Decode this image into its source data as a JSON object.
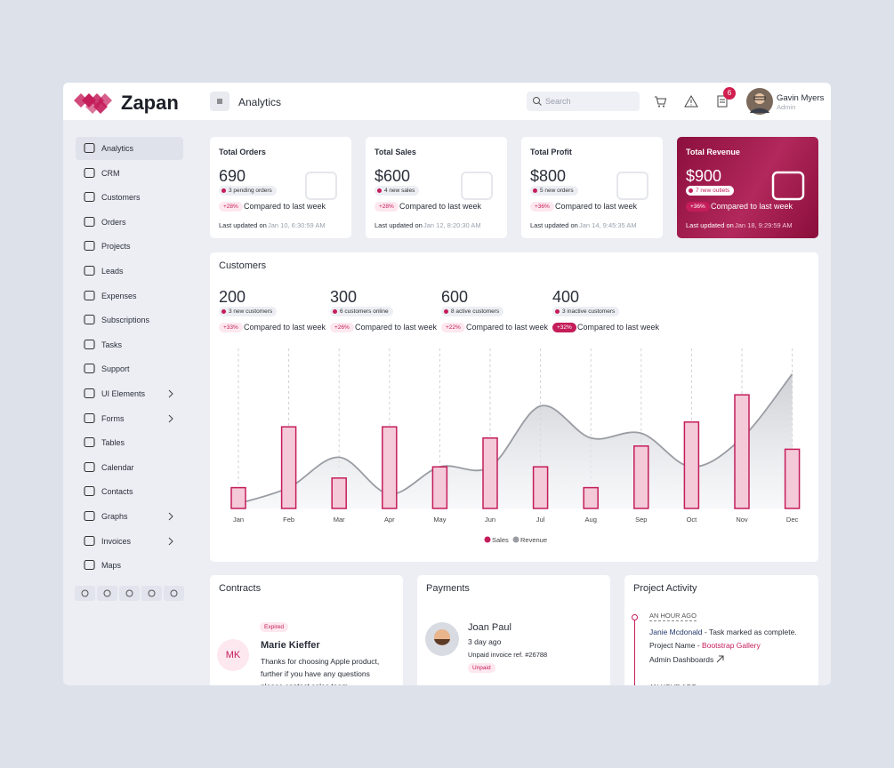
{
  "brand": "Zapan",
  "header": {
    "title": "Analytics",
    "search_placeholder": "Search",
    "notification_count": "6",
    "user_name": "Gavin Myers",
    "user_role": "Admin"
  },
  "sidebar": {
    "items": [
      {
        "label": "Analytics",
        "active": true
      },
      {
        "label": "CRM"
      },
      {
        "label": "Customers"
      },
      {
        "label": "Orders"
      },
      {
        "label": "Projects"
      },
      {
        "label": "Leads"
      },
      {
        "label": "Expenses"
      },
      {
        "label": "Subscriptions"
      },
      {
        "label": "Tasks"
      },
      {
        "label": "Support"
      },
      {
        "label": "UI Elements",
        "submenu": true
      },
      {
        "label": "Forms",
        "submenu": true
      },
      {
        "label": "Tables"
      },
      {
        "label": "Calendar"
      },
      {
        "label": "Contacts"
      },
      {
        "label": "Graphs",
        "submenu": true
      },
      {
        "label": "Invoices",
        "submenu": true
      },
      {
        "label": "Maps"
      }
    ]
  },
  "stats": [
    {
      "title": "Total Orders",
      "value": "690",
      "badge": "3 pending orders",
      "change": "+28%",
      "compare": "Compared to last week",
      "updated_label": "Last updated on",
      "updated_at": "Jan 10, 6:30:59 AM"
    },
    {
      "title": "Total Sales",
      "value": "$600",
      "badge": "4 new sales",
      "change": "+28%",
      "compare": "Compared to last week",
      "updated_label": "Last updated on",
      "updated_at": "Jan 12, 8:20:30 AM"
    },
    {
      "title": "Total Profit",
      "value": "$800",
      "badge": "5 new orders",
      "change": "+36%",
      "compare": "Compared to last week",
      "updated_label": "Last updated on",
      "updated_at": "Jan 14, 9:45:35 AM"
    },
    {
      "title": "Total Revenue",
      "value": "$900",
      "badge": "7 new outlets",
      "change": "+36%",
      "compare": "Compared to last week",
      "updated_label": "Last updated on",
      "updated_at": "Jan 18, 9:29:59 AM",
      "highlight": true
    }
  ],
  "customers": {
    "title": "Customers",
    "stats": [
      {
        "value": "200",
        "badge": "3 new customers",
        "change": "+33%",
        "compare": "Compared to last week"
      },
      {
        "value": "300",
        "badge": "6 customers online",
        "change": "+26%",
        "compare": "Compared to last week"
      },
      {
        "value": "600",
        "badge": "8 active customers",
        "change": "+22%",
        "compare": "Compared to last week"
      },
      {
        "value": "400",
        "badge": "3 inactive customers",
        "change": "+32%",
        "compare": "Compared to last week",
        "highlight": true
      }
    ]
  },
  "chart_data": {
    "type": "bar",
    "categories": [
      "Jan",
      "Feb",
      "Mar",
      "Apr",
      "May",
      "Jun",
      "Jul",
      "Aug",
      "Sep",
      "Oct",
      "Nov",
      "Dec"
    ],
    "series": [
      {
        "name": "Sales",
        "type": "bar",
        "color": "#c41d5a",
        "values": [
          13,
          51,
          19,
          51,
          26,
          44,
          26,
          13,
          39,
          54,
          71,
          37
        ]
      },
      {
        "name": "Revenue",
        "type": "area",
        "color": "#9a9ca3",
        "values": [
          3,
          13,
          32,
          9,
          26,
          26,
          64,
          44,
          47,
          26,
          44,
          84
        ]
      }
    ],
    "ylim": [
      0,
      100
    ],
    "grid": true,
    "legend": "bottom"
  },
  "contracts": {
    "title": "Contracts",
    "status": "Expired",
    "initials": "MK",
    "name": "Marie Kieffer",
    "message": "Thanks for choosing Apple product, further if you have any questions please contact sales team."
  },
  "payments": {
    "title": "Payments",
    "name": "Joan Paul",
    "time": "3 day ago",
    "ref": "Unpaid invoice ref. #26788",
    "status": "Unpaid"
  },
  "activity": {
    "title": "Project Activity",
    "items": [
      {
        "time": "AN HOUR AGO",
        "user": "Janie Mcdonald",
        "action": " - Task marked as complete.",
        "project_label": "Project Name - ",
        "project": "Bootstrap Gallery",
        "link": "Admin Dashboards"
      },
      {
        "time": "AN HOUR AGO"
      }
    ]
  }
}
